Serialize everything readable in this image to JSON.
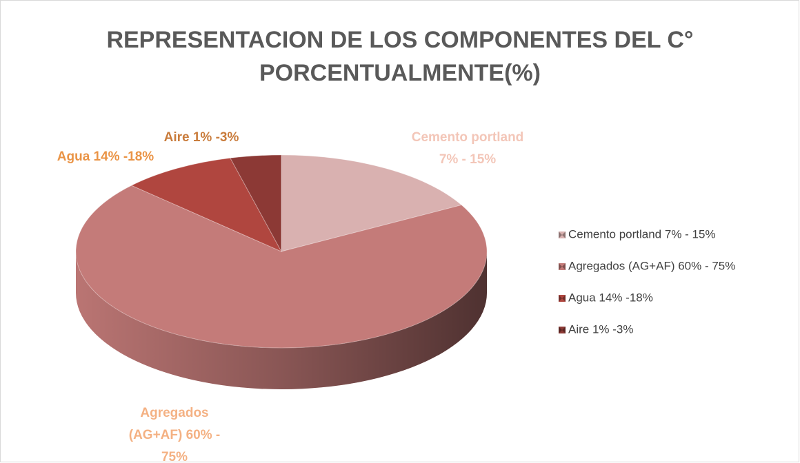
{
  "chart_data": {
    "type": "pie3d",
    "title": "REPRESENTACION DE LOS COMPONENTES DEL C° PORCENTUALMENTE(%)",
    "categories": [
      "Cemento portland 7% - 15%",
      "Agregados (AG+AF) 60% - 75%",
      "Agua 14% -18%",
      "Aire 1% -3%"
    ],
    "values": [
      17,
      70,
      9,
      4
    ],
    "colors": [
      "#d9b1b0",
      "#c47b79",
      "#b0463f",
      "#8c3935"
    ],
    "label_colors": [
      "#f3c6b8",
      "#f4b183",
      "#ea9446",
      "#c97c3c"
    ],
    "legend": "right"
  }
}
